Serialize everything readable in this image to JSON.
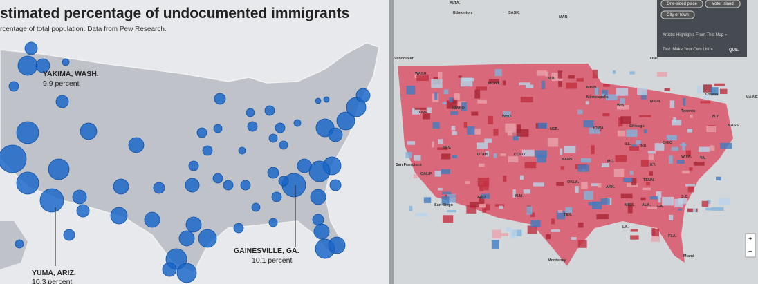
{
  "left_panel": {
    "title": "stimated percentage of undocumented immigrants",
    "subtitle": "rcentage of total population. Data from Pew Research.",
    "annotations": [
      {
        "place": "YAKIMA, WASH.",
        "value": "9.9 percent"
      },
      {
        "place": "YUMA, ARIZ.",
        "value": "10.3 percent"
      },
      {
        "place": "GAINESVILLE, GA.",
        "value": "10.1 percent"
      }
    ]
  },
  "right_panel": {
    "buttons": [
      "One-sided place",
      "Voter island",
      "City or town"
    ],
    "links": [
      "Article: Highlights From This Map »",
      "Test: Make Your Own List »"
    ],
    "corner_label": "QUE.",
    "zoom": [
      "+",
      "−"
    ],
    "map_labels": [
      "ALTA.",
      "Edmonton",
      "SASK.",
      "MAN.",
      "ONT.",
      "Vancouver",
      "WASH.",
      "MONT.",
      "N.D.",
      "ORE.",
      "IDAHO",
      "WYO.",
      "MINN.",
      "Minneapolis",
      "WIS.",
      "MICH.",
      "Ottawa",
      "Toronto",
      "N.Y.",
      "MASS.",
      "MAINE",
      "NEB.",
      "IOWA",
      "Chicago",
      "OHIO",
      "NEV.",
      "UTAH",
      "COLO.",
      "ILL.",
      "IND.",
      "San Francisco",
      "CALIF.",
      "KANS.",
      "MO.",
      "KY.",
      "W.VA.",
      "VA.",
      "OKLA.",
      "TENN.",
      "ARK.",
      "ARIZ.",
      "N.M.",
      "San Diego",
      "TEX.",
      "MISS.",
      "ALA.",
      "GA.",
      "S.C.",
      "LA.",
      "FLA.",
      "Monterrey",
      "Miami"
    ]
  }
}
